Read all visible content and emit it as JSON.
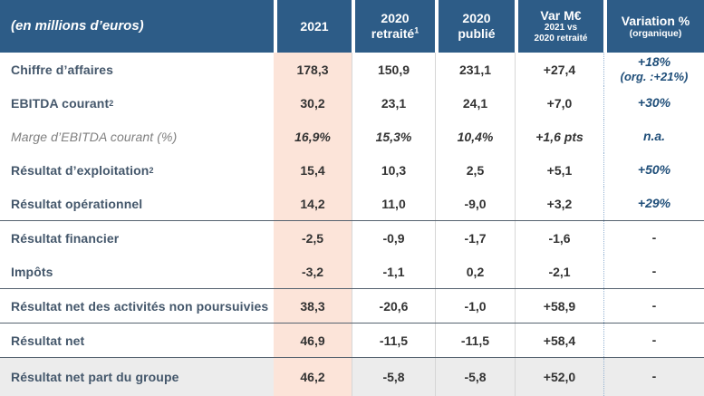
{
  "header": {
    "unit_label": "(en millions d’euros)",
    "col_2021": "2021",
    "col_2020_retraite": {
      "line1": "2020",
      "line2": "retraité",
      "sup": "1"
    },
    "col_2020_publie": {
      "line1": "2020",
      "line2": "publié"
    },
    "col_var": {
      "line1": "Var M€",
      "line2": "2021 vs",
      "line3": "2020 retraité"
    },
    "col_variation": {
      "line1": "Variation %",
      "line2": "(organique)"
    }
  },
  "rows": [
    {
      "label": "Chiffre d’affaires",
      "v2021": "178,3",
      "v2020r": "150,9",
      "v2020p": "231,1",
      "var": "+27,4",
      "variation": "+18%",
      "variation2": "(org. :+21%)"
    },
    {
      "label": "EBITDA courant",
      "sup": "2",
      "v2021": "30,2",
      "v2020r": "23,1",
      "v2020p": "24,1",
      "var": "+7,0",
      "variation": "+30%"
    },
    {
      "label": "Marge d’EBITDA courant (%)",
      "v2021": "16,9%",
      "v2020r": "15,3%",
      "v2020p": "10,4%",
      "var": "+1,6 pts",
      "variation": "n.a."
    },
    {
      "label": "Résultat d’exploitation",
      "sup": "2",
      "v2021": "15,4",
      "v2020r": "10,3",
      "v2020p": "2,5",
      "var": "+5,1",
      "variation": "+50%"
    },
    {
      "label": "Résultat opérationnel",
      "v2021": "14,2",
      "v2020r": "11,0",
      "v2020p": "-9,0",
      "var": "+3,2",
      "variation": "+29%"
    },
    {
      "label": "Résultat financier",
      "v2021": "-2,5",
      "v2020r": "-0,9",
      "v2020p": "-1,7",
      "var": "-1,6",
      "variation": "-"
    },
    {
      "label": "Impôts",
      "v2021": "-3,2",
      "v2020r": "-1,1",
      "v2020p": "0,2",
      "var": "-2,1",
      "variation": "-"
    },
    {
      "label": "Résultat net des activités non poursuivies",
      "v2021": "38,3",
      "v2020r": "-20,6",
      "v2020p": "-1,0",
      "var": "+58,9",
      "variation": "-"
    },
    {
      "label": "Résultat net",
      "v2021": "46,9",
      "v2020r": "-11,5",
      "v2020p": "-11,5",
      "var": "+58,4",
      "variation": "-"
    },
    {
      "label": "Résultat net part du groupe",
      "v2021": "46,2",
      "v2020r": "-5,8",
      "v2020p": "-5,8",
      "var": "+52,0",
      "variation": "-"
    }
  ],
  "colors": {
    "header_bg": "#2d5c87",
    "col_2021_bg": "#fce4d9",
    "total_row_bg": "#ececec",
    "accent_navy": "#1f4e79"
  }
}
